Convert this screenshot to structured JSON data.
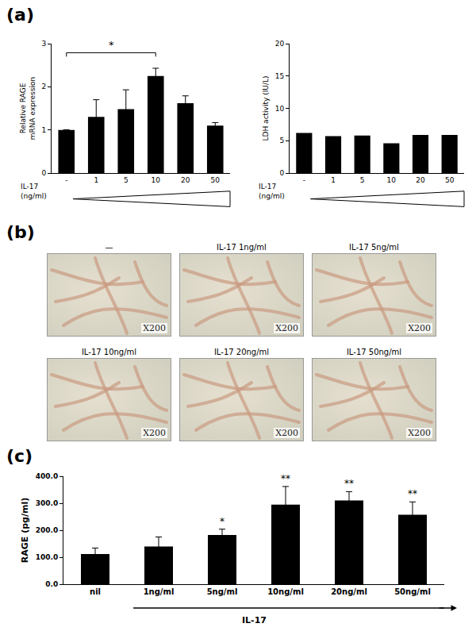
{
  "panel_labels": [
    "(a)",
    "(b)",
    "(c)"
  ],
  "chart_data": [
    {
      "type": "bar",
      "ylabel": "Relative RAGE\nmRNA expression",
      "xlabel": "IL-17\n(ng/ml)",
      "categories": [
        "-",
        "1",
        "5",
        "10",
        "20",
        "50"
      ],
      "values": [
        1.0,
        1.3,
        1.48,
        2.25,
        1.62,
        1.1
      ],
      "errors": [
        null,
        0.4,
        0.45,
        0.18,
        0.17,
        0.07
      ],
      "color": "#000000",
      "ylim": [
        0,
        3
      ],
      "yticks": [
        0,
        1,
        2,
        3
      ],
      "grid": false,
      "annotations": [
        {
          "from": "-",
          "to": "10",
          "text": "*"
        }
      ]
    },
    {
      "type": "bar",
      "ylabel": "LDH activity (IU/L)",
      "xlabel": "IL-17\n(ng/ml)",
      "categories": [
        "-",
        "1",
        "5",
        "10",
        "20",
        "50"
      ],
      "values": [
        6.2,
        5.7,
        5.8,
        4.6,
        5.9,
        5.9
      ],
      "color": "#000000",
      "ylim": [
        0,
        20
      ],
      "yticks": [
        0,
        5,
        10,
        15,
        20
      ],
      "grid": false
    },
    {
      "type": "bar",
      "ylabel": "RAGE (pg/ml)",
      "xlabel": "IL-17",
      "categories": [
        "nil",
        "1ng/ml",
        "5ng/ml",
        "10ng/ml",
        "20ng/ml",
        "50ng/ml"
      ],
      "values": [
        112,
        140,
        182,
        295,
        310,
        257
      ],
      "errors": [
        22,
        35,
        22,
        67,
        33,
        48
      ],
      "significance": [
        null,
        null,
        "*",
        "**",
        "**",
        "**"
      ],
      "color": "#000000",
      "ylim": [
        0,
        400
      ],
      "yticks": [
        {
          "value": 0,
          "label": "0.0"
        },
        {
          "value": 100,
          "label": "100.0"
        },
        {
          "value": 200,
          "label": "200.0"
        },
        {
          "value": 300,
          "label": "300.0"
        },
        {
          "value": 400,
          "label": "400.0"
        }
      ],
      "grid": false
    }
  ],
  "images": [
    {
      "caption": "—",
      "magnification": "X200"
    },
    {
      "caption": "IL-17 1ng/ml",
      "magnification": "X200"
    },
    {
      "caption": "IL-17 5ng/ml",
      "magnification": "X200"
    },
    {
      "caption": "IL-17 10ng/ml",
      "magnification": "X200"
    },
    {
      "caption": "IL-17 20ng/ml",
      "magnification": "X200"
    },
    {
      "caption": "IL-17 50ng/ml",
      "magnification": "X200"
    }
  ]
}
